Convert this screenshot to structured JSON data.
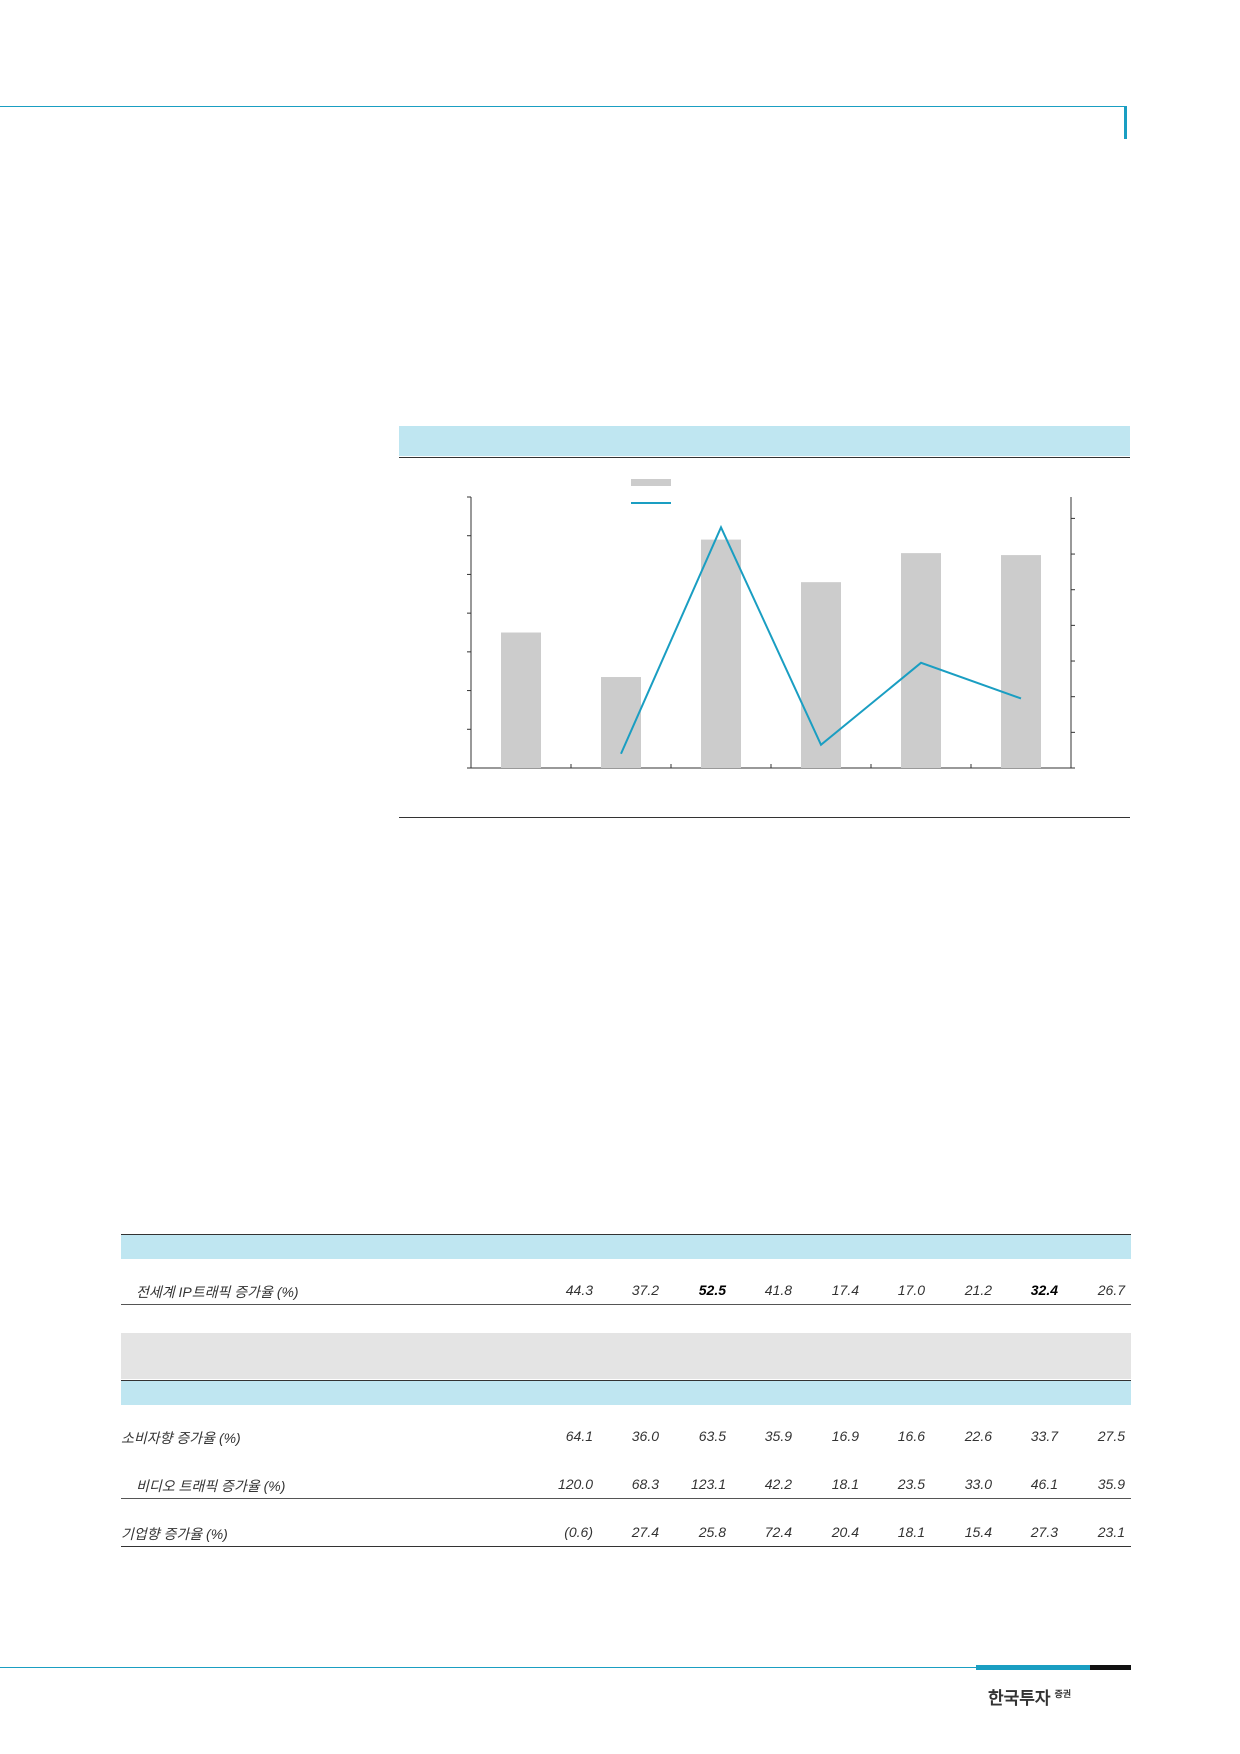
{
  "chart_data": {
    "type": "bar",
    "categories": [
      "",
      "",
      "",
      "",
      "",
      ""
    ],
    "series": [
      {
        "values": [
          3.5,
          2.35,
          5.9,
          4.8,
          5.55,
          5.5
        ]
      },
      {
        "values": [
          null,
          0.4,
          6.75,
          0.65,
          2.95,
          1.95
        ]
      }
    ],
    "ylim": [
      0,
      7
    ],
    "y2lim": [
      0,
      7.6
    ],
    "grid": false,
    "legend_position": "top-left"
  },
  "table": {
    "columns": 9,
    "row_total": {
      "label": "전세계 IP트래픽 증가율 (%)",
      "values": [
        "44.3",
        "37.2",
        "52.5",
        "41.8",
        "17.4",
        "17.0",
        "21.2",
        "32.4",
        "26.7"
      ],
      "bold_index": [
        2,
        7
      ]
    },
    "rows": [
      {
        "label": "소비자향 증가율 (%)",
        "indent": false,
        "values": [
          "64.1",
          "36.0",
          "63.5",
          "35.9",
          "16.9",
          "16.6",
          "22.6",
          "33.7",
          "27.5"
        ]
      },
      {
        "label": "비디오 트래픽 증가율 (%)",
        "indent": true,
        "values": [
          "120.0",
          "68.3",
          "123.1",
          "42.2",
          "18.1",
          "23.5",
          "33.0",
          "46.1",
          "35.9"
        ]
      },
      {
        "label": "기업향 증가율 (%)",
        "indent": false,
        "values": [
          "(0.6)",
          "27.4",
          "25.8",
          "72.4",
          "20.4",
          "18.1",
          "15.4",
          "27.3",
          "23.1"
        ]
      }
    ]
  },
  "footer": {
    "logo_main": "한국투자",
    "logo_sub": "증권"
  },
  "colors": {
    "accent": "#1a9ec2",
    "band": "#bfe6f1",
    "bar": "#cccccc",
    "gray_band": "#e4e4e4"
  }
}
